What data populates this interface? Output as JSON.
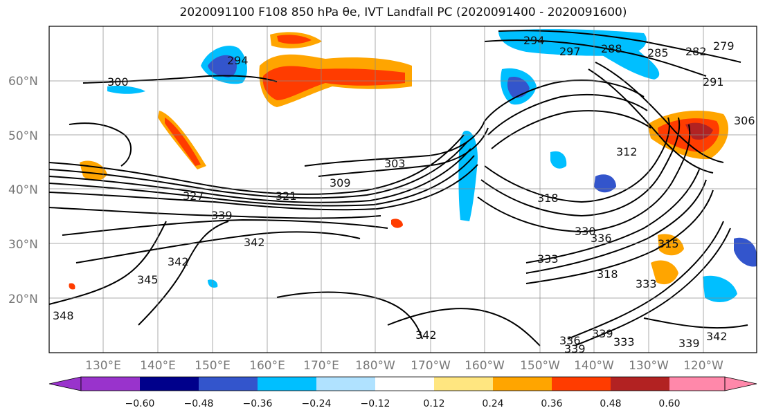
{
  "title": "2020091100 F108 850 hPa θe, IVT Landfall PC (2020091400 - 2020091600)",
  "latitude_labels": [
    "60°N",
    "50°N",
    "40°N",
    "30°N",
    "20°N"
  ],
  "longitude_labels": [
    "130°E",
    "140°E",
    "150°E",
    "160°E",
    "170°E",
    "180°W",
    "170°W",
    "160°W",
    "150°W",
    "140°W",
    "130°W",
    "120°W"
  ],
  "colorbar": {
    "labels": [
      "−0.60",
      "−0.48",
      "−0.36",
      "−0.24",
      "−0.12",
      "0.12",
      "0.24",
      "0.36",
      "0.48",
      "0.60"
    ],
    "colors": [
      "#9933cc",
      "#00008b",
      "#3355cc",
      "#00bfff",
      "#b0e2ff",
      "#ffffff",
      "#ffe680",
      "#ffa500",
      "#ff3c00",
      "#b22222",
      "#ff88aa"
    ]
  },
  "contour_labels": [
    "300",
    "294",
    "297",
    "288",
    "285",
    "282",
    "279",
    "291",
    "306",
    "312",
    "303",
    "309",
    "327",
    "321",
    "318",
    "339",
    "342",
    "336",
    "333",
    "315",
    "345",
    "348",
    "330"
  ]
}
